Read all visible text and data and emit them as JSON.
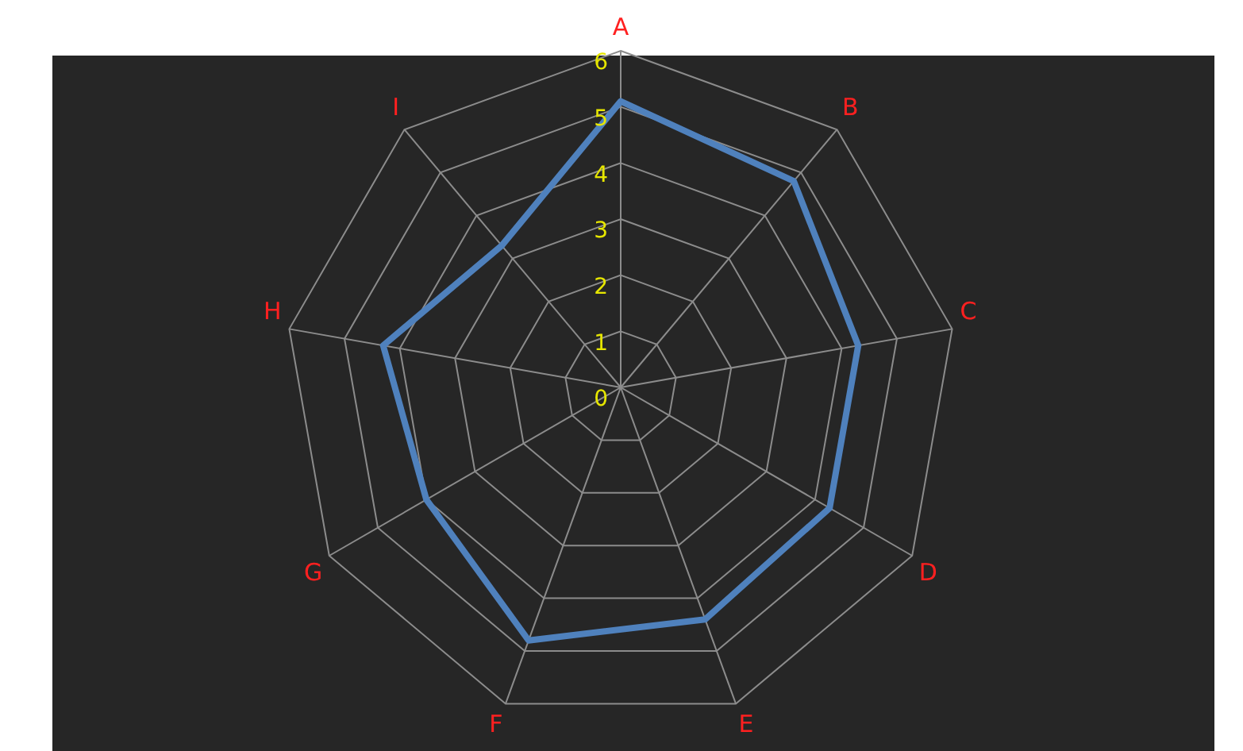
{
  "chart_data": {
    "type": "radar",
    "categories": [
      "A",
      "B",
      "C",
      "D",
      "E",
      "F",
      "G",
      "H",
      "I"
    ],
    "series": [
      {
        "color": "#4f81bd",
        "values": [
          5.1,
          4.8,
          4.3,
          4.3,
          4.4,
          4.8,
          4,
          4.3,
          3.3
        ]
      }
    ],
    "ylim": [
      0,
      6
    ],
    "yticks": [
      0,
      1,
      2,
      3,
      4,
      5,
      6
    ],
    "grid": true,
    "legend": false,
    "marker": "none"
  }
}
